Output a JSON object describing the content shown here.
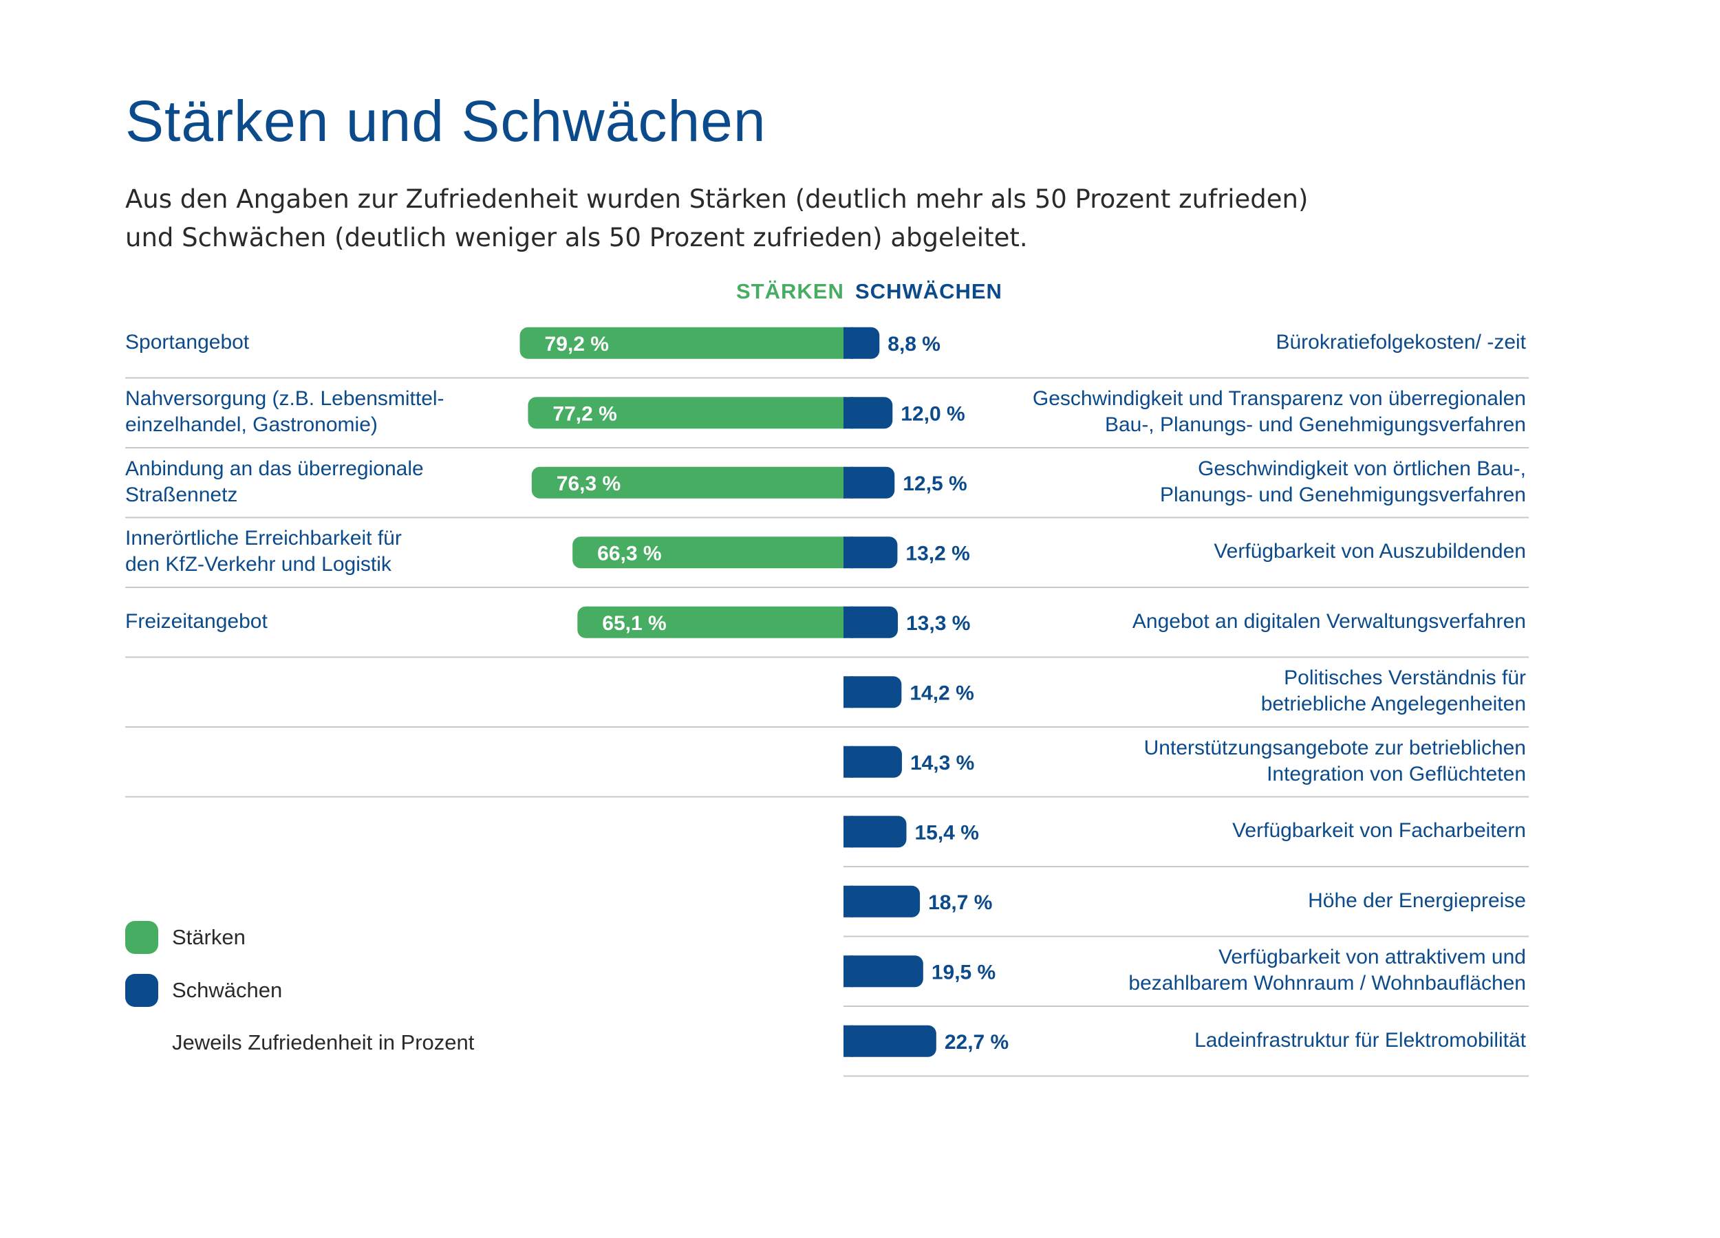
{
  "header": {
    "title": "Stärken und Schwächen",
    "subtitle": [
      "Aus den Angaben zur Zufriedenheit wurden Stärken (deutlich mehr als 50 Prozent zufrieden)",
      "und Schwächen (deutlich weniger als 50 Prozent zufrieden) abgeleitet."
    ]
  },
  "colors": {
    "strength": "#47ad63",
    "weakness": "#0b4a8b",
    "divider": "#c8c8c8"
  },
  "legend": {
    "strengths": "Stärken",
    "weaknesses": "Schwächen",
    "note": "Jeweils Zufriedenheit in Prozent"
  },
  "chart_data": {
    "type": "bar",
    "title": "Stärken und Schwächen",
    "unit": "%",
    "column_headers": {
      "strengths": "STÄRKEN",
      "weaknesses": "SCHWÄCHEN"
    },
    "strengths": [
      {
        "label": [
          "Sportangebot"
        ],
        "value": 79.2,
        "display": "79,2 %"
      },
      {
        "label": [
          "Nahversorgung (z.B. Lebensmittel-",
          "einzelhandel, Gastronomie)"
        ],
        "value": 77.2,
        "display": "77,2 %"
      },
      {
        "label": [
          "Anbindung an das überregionale",
          "Straßennetz"
        ],
        "value": 76.3,
        "display": "76,3 %"
      },
      {
        "label": [
          "Innerörtliche Erreichbarkeit für",
          "den KfZ-Verkehr und Logistik"
        ],
        "value": 66.3,
        "display": "66,3 %"
      },
      {
        "label": [
          "Freizeitangebot"
        ],
        "value": 65.1,
        "display": "65,1 %"
      }
    ],
    "weaknesses": [
      {
        "label": [
          "Bürokratiefolgekosten/ -zeit"
        ],
        "value": 8.8,
        "display": "8,8 %"
      },
      {
        "label": [
          "Geschwindigkeit und Transparenz von überregionalen",
          "Bau-, Planungs- und Genehmigungsverfahren"
        ],
        "value": 12.0,
        "display": "12,0 %"
      },
      {
        "label": [
          "Geschwindigkeit von örtlichen Bau-,",
          "Planungs- und Genehmigungsverfahren"
        ],
        "value": 12.5,
        "display": "12,5 %"
      },
      {
        "label": [
          "Verfügbarkeit von Auszubildenden"
        ],
        "value": 13.2,
        "display": "13,2 %"
      },
      {
        "label": [
          "Angebot an digitalen Verwaltungsverfahren"
        ],
        "value": 13.3,
        "display": "13,3 %"
      },
      {
        "label": [
          "Politisches Verständnis für",
          "betriebliche Angelegenheiten"
        ],
        "value": 14.2,
        "display": "14,2 %"
      },
      {
        "label": [
          "Unterstützungsangebote zur betrieblichen",
          "Integration von Geflüchteten"
        ],
        "value": 14.3,
        "display": "14,3 %"
      },
      {
        "label": [
          "Verfügbarkeit von Facharbeitern"
        ],
        "value": 15.4,
        "display": "15,4 %"
      },
      {
        "label": [
          "Höhe der Energiepreise"
        ],
        "value": 18.7,
        "display": "18,7 %"
      },
      {
        "label": [
          "Verfügbarkeit von attraktivem und",
          "bezahlbarem Wohnraum / Wohnbauflächen"
        ],
        "value": 19.5,
        "display": "19,5 %"
      },
      {
        "label": [
          "Ladeinfrastruktur für Elektromobilität"
        ],
        "value": 22.7,
        "display": "22,7 %"
      }
    ]
  }
}
